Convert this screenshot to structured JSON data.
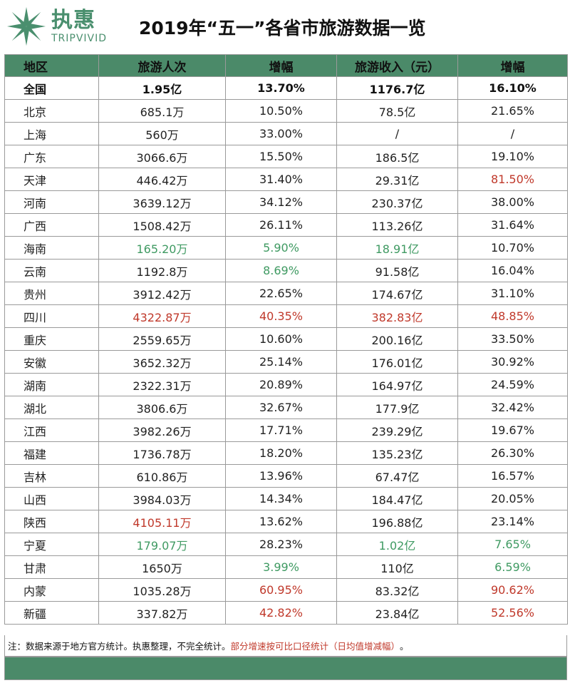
{
  "logo": {
    "cn": "执惠",
    "en": "TRIPVIVID"
  },
  "title": "2019年“五一”各省市旅游数据一览",
  "headers": [
    "地区",
    "旅游人次",
    "增幅",
    "旅游收入（元）",
    "增幅"
  ],
  "total_row": [
    "全国",
    "1.95亿",
    "13.70%",
    "1176.7亿",
    "16.10%"
  ],
  "rows": [
    [
      "北京",
      "685.1万",
      "10.50%",
      "78.5亿",
      "21.65%"
    ],
    [
      "上海",
      "560万",
      "33.00%",
      "/",
      "/"
    ],
    [
      "广东",
      "3066.6万",
      "15.50%",
      "186.5亿",
      "19.10%"
    ],
    [
      "天津",
      "446.42万",
      "31.40%",
      "29.31亿",
      "81.50%"
    ],
    [
      "河南",
      "3639.12万",
      "34.12%",
      "230.37亿",
      "38.00%"
    ],
    [
      "广西",
      "1508.42万",
      "26.11%",
      "113.26亿",
      "31.64%"
    ],
    [
      "海南",
      "165.20万",
      "5.90%",
      "18.91亿",
      "10.70%"
    ],
    [
      "云南",
      "1192.8万",
      "8.69%",
      "91.58亿",
      "16.04%"
    ],
    [
      "贵州",
      "3912.42万",
      "22.65%",
      "174.67亿",
      "31.10%"
    ],
    [
      "四川",
      "4322.87万",
      "40.35%",
      "382.83亿",
      "48.85%"
    ],
    [
      "重庆",
      "2559.65万",
      "10.60%",
      "200.16亿",
      "33.50%"
    ],
    [
      "安徽",
      "3652.32万",
      "25.14%",
      "176.01亿",
      "30.92%"
    ],
    [
      "湖南",
      "2322.31万",
      "20.89%",
      "164.97亿",
      "24.59%"
    ],
    [
      "湖北",
      "3806.6万",
      "32.67%",
      "177.9亿",
      "32.42%"
    ],
    [
      "江西",
      "3982.26万",
      "17.71%",
      "239.29亿",
      "19.67%"
    ],
    [
      "福建",
      "1736.78万",
      "18.20%",
      "135.23亿",
      "26.30%"
    ],
    [
      "吉林",
      "610.86万",
      "13.96%",
      "67.47亿",
      "16.57%"
    ],
    [
      "山西",
      "3984.03万",
      "14.34%",
      "184.47亿",
      "20.05%"
    ],
    [
      "陕西",
      "4105.11万",
      "13.62%",
      "196.88亿",
      "23.14%"
    ],
    [
      "宁夏",
      "179.07万",
      "28.23%",
      "1.02亿",
      "7.65%"
    ],
    [
      "甘肃",
      "1650万",
      "3.99%",
      "110亿",
      "6.59%"
    ],
    [
      "内蒙",
      "1035.28万",
      "60.95%",
      "83.32亿",
      "90.62%"
    ],
    [
      "新疆",
      "337.82万",
      "42.82%",
      "23.84亿",
      "52.56%"
    ]
  ],
  "cell_colors": {
    "3": [
      null,
      null,
      null,
      null,
      "red"
    ],
    "6": [
      null,
      "green",
      "green",
      "green",
      null
    ],
    "7": [
      null,
      null,
      "green",
      null,
      null
    ],
    "9": [
      null,
      "red",
      "red",
      "red",
      "red"
    ],
    "18": [
      null,
      "red",
      null,
      null,
      null
    ],
    "19": [
      null,
      "green",
      null,
      "green",
      "green"
    ],
    "20": [
      null,
      null,
      "green",
      null,
      "green"
    ],
    "21": [
      null,
      null,
      "red",
      null,
      "red"
    ],
    "22": [
      null,
      null,
      "red",
      null,
      "red"
    ]
  },
  "colors": {
    "header_bg": "#4b8a69",
    "highlight_green": "#3f9a62",
    "highlight_red": "#c0392b",
    "logo": "#4a8f6e"
  },
  "note": {
    "prefix": "注：数据来源于地方官方统计。执惠整理，不完全统计。",
    "highlight": "部分增速按可比口径统计（日均值增减幅）",
    "suffix": "。"
  }
}
